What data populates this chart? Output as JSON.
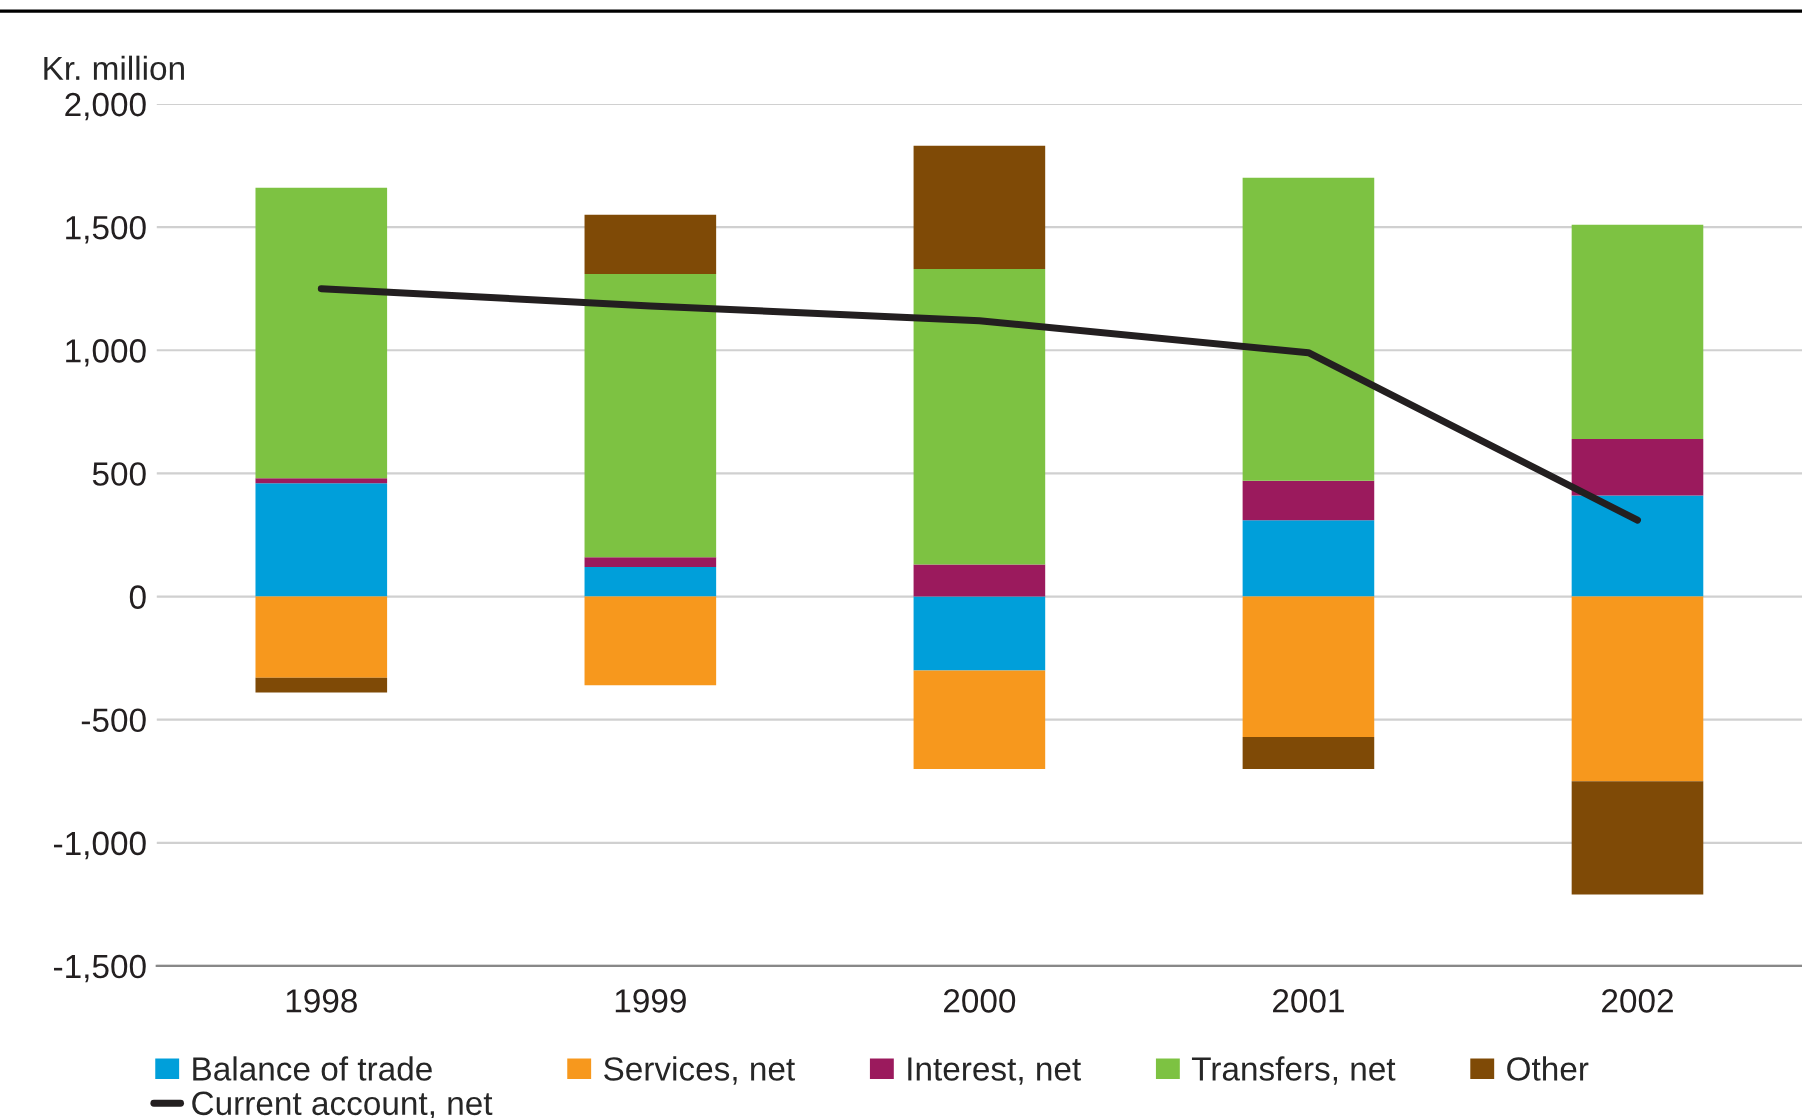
{
  "chart_data": {
    "type": "bar",
    "stacked": true,
    "ylabel": "Kr. million",
    "categories": [
      "1998",
      "1999",
      "2000",
      "2001",
      "2002"
    ],
    "series": [
      {
        "name": "Balance of trade",
        "color": "#009fda",
        "values": [
          460,
          120,
          -300,
          310,
          410
        ]
      },
      {
        "name": "Services, net",
        "color": "#f7981d",
        "values": [
          -330,
          -360,
          -400,
          -570,
          -750
        ]
      },
      {
        "name": "Interest, net",
        "color": "#9b1a5d",
        "values": [
          20,
          40,
          130,
          160,
          230
        ]
      },
      {
        "name": "Transfers, net",
        "color": "#7dc242",
        "values": [
          1180,
          1150,
          1200,
          1230,
          870
        ]
      },
      {
        "name": "Other",
        "color": "#7f4a06",
        "values": [
          -60,
          240,
          500,
          -130,
          -460
        ]
      },
      {
        "name": "Current account, net",
        "type": "line",
        "color": "#231f20",
        "values": [
          1250,
          1180,
          1120,
          990,
          310
        ]
      }
    ],
    "ylim": [
      -1500,
      2000
    ],
    "yticks": [
      {
        "value": -1500,
        "label": "-1,500"
      },
      {
        "value": -1000,
        "label": "-1,000"
      },
      {
        "value": -500,
        "label": "-500"
      },
      0,
      500,
      {
        "value": 1000,
        "label": "1,000"
      },
      {
        "value": 1500,
        "label": "1,500"
      },
      {
        "value": 2000,
        "label": "2,000"
      }
    ],
    "grid": "y",
    "legend": "bottom",
    "marker": "none",
    "line_style": "solid"
  }
}
